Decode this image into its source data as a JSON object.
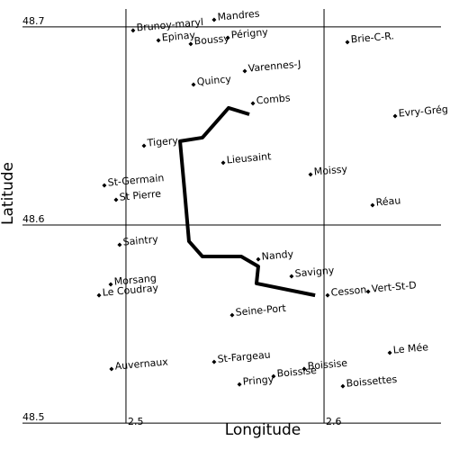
{
  "chart_data": {
    "type": "scatter",
    "xlabel": "Longitude",
    "ylabel": "Latitude",
    "xlim": [
      2.4364,
      2.6636
    ],
    "ylim": [
      48.4864,
      48.7136
    ],
    "xticks": [
      2.5,
      2.6
    ],
    "yticks": [
      48.5,
      48.6,
      48.7
    ],
    "grid": true,
    "color": "#000000",
    "labels": [
      "Brunoy-maryl",
      "Mandres",
      "Epinay",
      "Boussy",
      "Périgny",
      "Brie-C-R.",
      "Varennes-J",
      "Quincy",
      "Combs",
      "Evry-Grég",
      "Tigery",
      "Lieusaint",
      "Moissy",
      "St-Germain",
      "St Pierre",
      "Réau",
      "Saintry",
      "Nandy",
      "Savigny",
      "Morsang",
      "Le Coudray",
      "Cesson",
      "Vert-St-D",
      "Seine-Port",
      "Le Mée",
      "Auvernaux",
      "St-Fargeau",
      "Boissise",
      "Boissise",
      "Pringy",
      "Boissettes"
    ],
    "x": [
      2.5036,
      2.5445,
      2.5164,
      2.5327,
      2.5514,
      2.6118,
      2.56,
      2.5341,
      2.5641,
      2.6359,
      2.5091,
      2.5491,
      2.5932,
      2.4891,
      2.495,
      2.6245,
      2.4968,
      2.5668,
      2.5836,
      2.4923,
      2.4864,
      2.6018,
      2.6223,
      2.5536,
      2.6332,
      2.4927,
      2.5445,
      2.5745,
      2.59,
      2.5573,
      2.6095
    ],
    "y": [
      48.6982,
      48.7036,
      48.6932,
      48.6914,
      48.6945,
      48.6923,
      48.6777,
      48.6709,
      48.6614,
      48.655,
      48.64,
      48.6314,
      48.6255,
      48.62,
      48.6127,
      48.61,
      48.59,
      48.5827,
      48.5741,
      48.57,
      48.5645,
      48.5645,
      48.5664,
      48.5545,
      48.5355,
      48.5273,
      48.5309,
      48.5236,
      48.5273,
      48.5195,
      48.5186
    ],
    "route": {
      "color": "#000000",
      "x": [
        2.5623,
        2.5518,
        2.5386,
        2.5273,
        2.5295,
        2.5318,
        2.5386,
        2.5582,
        2.5668,
        2.5659,
        2.5955
      ],
      "y": [
        48.6559,
        48.6591,
        48.6441,
        48.6423,
        48.6182,
        48.5918,
        48.5841,
        48.5841,
        48.5791,
        48.5705,
        48.5645
      ]
    }
  }
}
